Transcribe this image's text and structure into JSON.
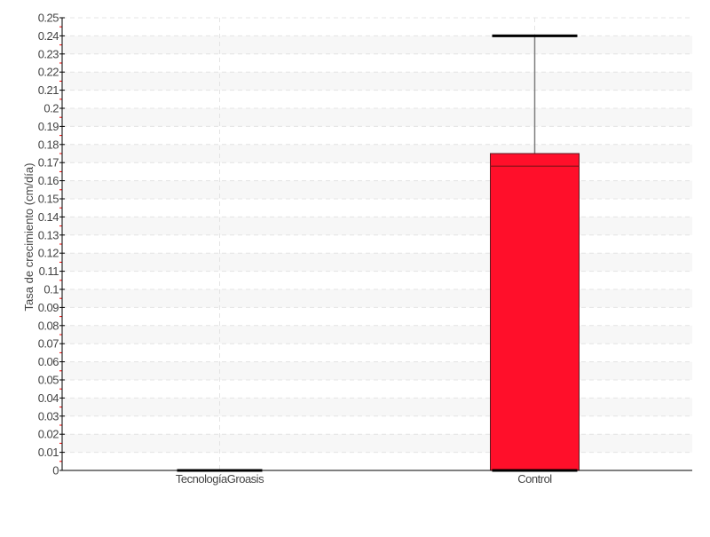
{
  "chart_data": {
    "type": "box",
    "title": "",
    "xlabel": "",
    "ylabel": "Tasa de crecimiento (cm/día)",
    "ylim": [
      0,
      0.25
    ],
    "ytick_step": 0.01,
    "yticks": [
      "0",
      "0.01",
      "0.02",
      "0.03",
      "0.04",
      "0.05",
      "0.06",
      "0.07",
      "0.08",
      "0.09",
      "0.1",
      "0.11",
      "0.12",
      "0.13",
      "0.14",
      "0.15",
      "0.16",
      "0.17",
      "0.18",
      "0.19",
      "0.2",
      "0.21",
      "0.22",
      "0.23",
      "0.24",
      "0.25"
    ],
    "grid": true,
    "categories": [
      "TecnologíaGroasis",
      "Control"
    ],
    "boxes": [
      {
        "category": "TecnologíaGroasis",
        "min": 0,
        "q1": 0,
        "median": 0,
        "q3": 0,
        "max": 0
      },
      {
        "category": "Control",
        "min": 0,
        "q1": 0,
        "median": 0.168,
        "q3": 0.175,
        "max": 0.24
      }
    ],
    "colors": {
      "box_fill": "#ff0f2a",
      "median": "#a0101c",
      "whisker": "#808080",
      "cap": "#000000",
      "band": "#f7f7f7",
      "minor_tick": "#ff0000"
    }
  }
}
